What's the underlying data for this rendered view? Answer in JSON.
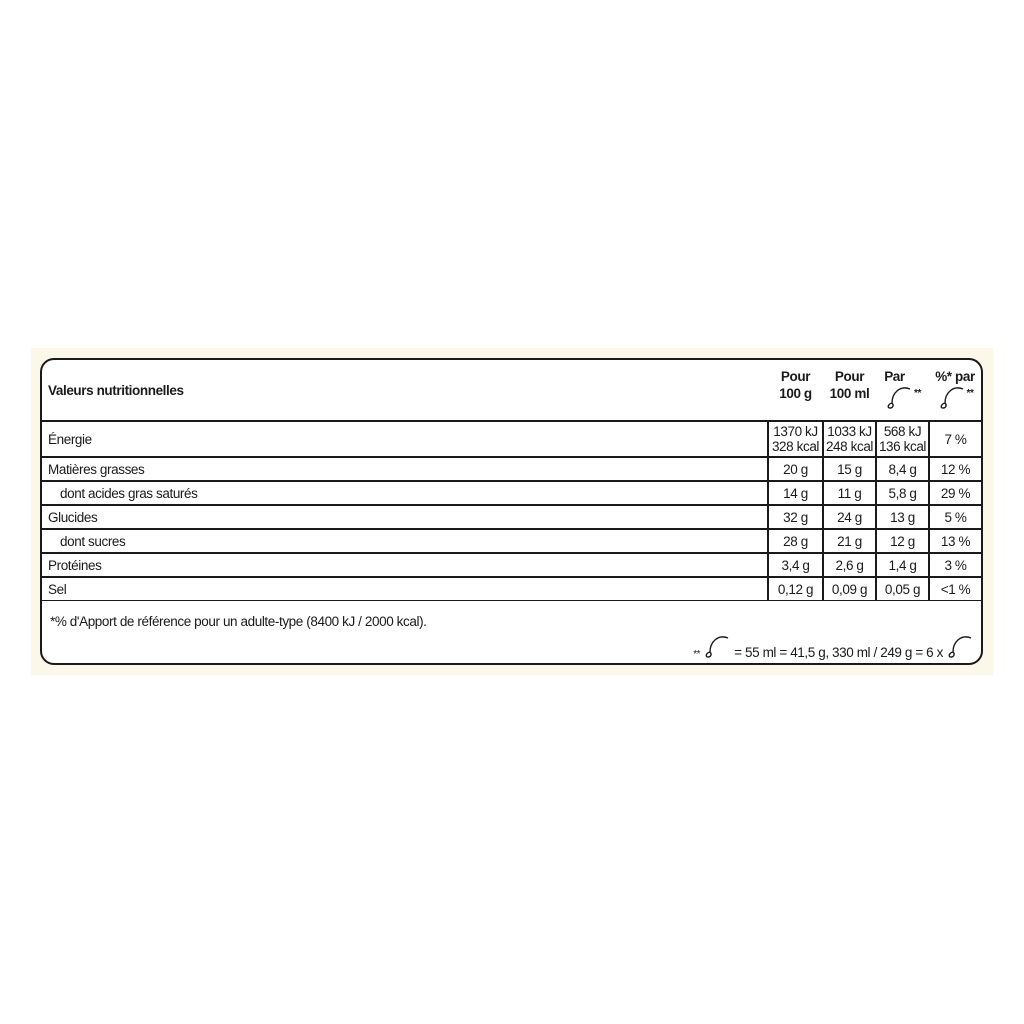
{
  "table": {
    "title": "Valeurs nutritionnelles",
    "headers": [
      {
        "line1": "Pour",
        "line2": "100 g"
      },
      {
        "line1": "Pour",
        "line2": "100 ml"
      },
      {
        "line1": "Par",
        "line2": "",
        "icon": "ice-cream-scoop-icon",
        "mark": "**"
      },
      {
        "line1": "%* par",
        "line2": "",
        "icon": "ice-cream-scoop-icon",
        "mark": "**"
      }
    ],
    "energy": {
      "label": "Énergie",
      "v1a": "1370 kJ",
      "v1b": "328 kcal",
      "v2a": "1033 kJ",
      "v2b": "248 kcal",
      "v3a": "568 kJ",
      "v3b": "136 kcal",
      "v4": "7 %"
    },
    "rows": [
      {
        "label": "Matières grasses",
        "values": [
          "20 g",
          "15 g",
          "8,4 g",
          "12 %"
        ]
      },
      {
        "label": "dont acides gras saturés",
        "values": [
          "14 g",
          "11 g",
          "5,8 g",
          "29 %"
        ]
      },
      {
        "label": "Glucides",
        "values": [
          "32 g",
          "24 g",
          "13 g",
          "5 %"
        ]
      },
      {
        "label": "dont sucres",
        "values": [
          "28 g",
          "21 g",
          "12 g",
          "13 %"
        ]
      },
      {
        "label": "Protéines",
        "values": [
          "3,4 g",
          "2,6 g",
          "1,4 g",
          "3 %"
        ]
      },
      {
        "label": "Sel",
        "values": [
          "0,12 g",
          "0,09 g",
          "0,05 g",
          "<1 %"
        ]
      }
    ],
    "footnote": "*% d'Apport de référence pour un adulte-type (8400 kJ / 2000 kcal).",
    "serving": {
      "mark": "**",
      "text": " = 55 ml = 41,5 g, 330 ml / 249 g = 6 x"
    }
  },
  "colors": {
    "border": "#1a1a1a",
    "background": "#fbf8e9"
  }
}
